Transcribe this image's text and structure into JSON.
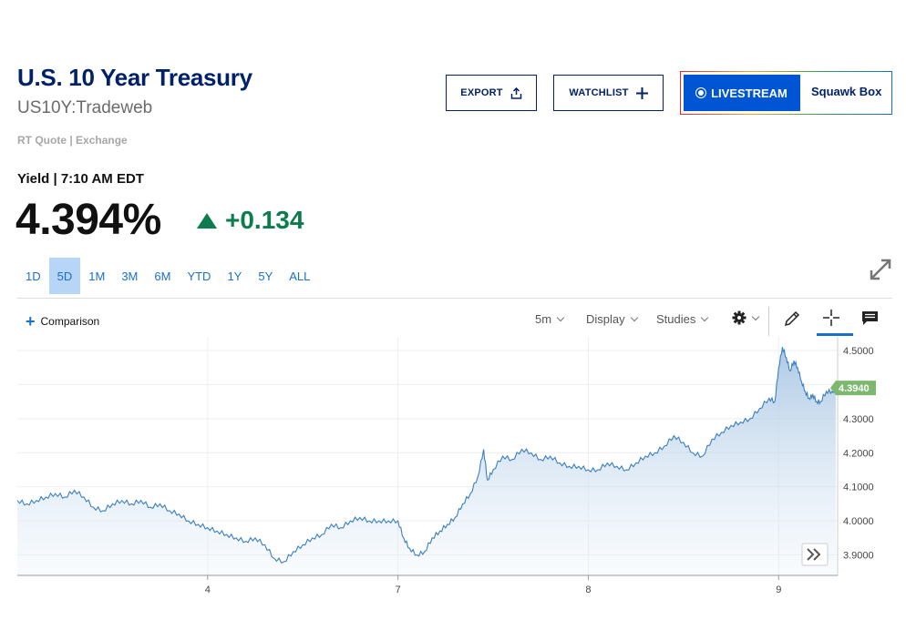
{
  "header": {
    "title": "U.S. 10 Year Treasury",
    "symbol": "US10Y:Tradeweb",
    "quote_source": "RT Quote | Exchange",
    "yield_label": "Yield | 7:10 AM EDT",
    "price": "4.394%",
    "change": "+0.134"
  },
  "actions": {
    "export": "EXPORT",
    "watchlist": "WATCHLIST",
    "livestream": "LIVESTREAM",
    "squawk": "Squawk Box"
  },
  "ranges": [
    "1D",
    "5D",
    "1M",
    "3M",
    "6M",
    "YTD",
    "1Y",
    "5Y",
    "ALL"
  ],
  "active_range": "5D",
  "toolbar": {
    "comparison": "Comparison",
    "interval": "5m",
    "display": "Display",
    "studies": "Studies"
  },
  "colors": {
    "accent": "#1a6fc9",
    "positive": "#0b7c4e",
    "brand": "#012169",
    "last_badge": "#7cb86e"
  },
  "chart_data": {
    "type": "area",
    "last_value_label": "4.3940",
    "y_ticks": [
      "4.5000",
      "4.4000",
      "4.3000",
      "4.2000",
      "4.1000",
      "4.0000",
      "3.9000"
    ],
    "ylim": [
      3.84,
      4.54
    ],
    "x_ticks": [
      {
        "label": "4",
        "x": 1.0
      },
      {
        "label": "7",
        "x": 2.0
      },
      {
        "label": "8",
        "x": 3.0
      },
      {
        "label": "9",
        "x": 4.0
      }
    ],
    "xlim": [
      0.0,
      4.31
    ],
    "series": [
      {
        "x": [
          0.0,
          0.05,
          0.1,
          0.15,
          0.2,
          0.25,
          0.3,
          0.35,
          0.4,
          0.45,
          0.5,
          0.55,
          0.6,
          0.65,
          0.7,
          0.75,
          0.8,
          0.85,
          0.9,
          0.95,
          1.0,
          1.05,
          1.1,
          1.15,
          1.2,
          1.25,
          1.3,
          1.35,
          1.4,
          1.45,
          1.5,
          1.55,
          1.6,
          1.65,
          1.7,
          1.75,
          1.8,
          1.85,
          1.9,
          1.95,
          2.0,
          2.03,
          2.06,
          2.1,
          2.14,
          2.18,
          2.22,
          2.26,
          2.3,
          2.34,
          2.38,
          2.42,
          2.45,
          2.47,
          2.5,
          2.55,
          2.6,
          2.65,
          2.7,
          2.75,
          2.8,
          2.85,
          2.9,
          2.95,
          3.0,
          3.05,
          3.1,
          3.15,
          3.2,
          3.25,
          3.3,
          3.35,
          3.4,
          3.45,
          3.5,
          3.55,
          3.6,
          3.65,
          3.7,
          3.75,
          3.8,
          3.85,
          3.9,
          3.95,
          3.98,
          4.0,
          4.02,
          4.04,
          4.06,
          4.08,
          4.1,
          4.12,
          4.14,
          4.16,
          4.18,
          4.2,
          4.22,
          4.25,
          4.28,
          4.3
        ],
        "y": [
          4.06,
          4.05,
          4.06,
          4.07,
          4.08,
          4.07,
          4.09,
          4.07,
          4.04,
          4.03,
          4.05,
          4.06,
          4.05,
          4.06,
          4.04,
          4.05,
          4.03,
          4.02,
          4.0,
          3.99,
          3.98,
          3.97,
          3.96,
          3.95,
          3.94,
          3.95,
          3.93,
          3.89,
          3.88,
          3.91,
          3.93,
          3.95,
          3.96,
          3.99,
          3.98,
          4.0,
          4.01,
          4.0,
          4.0,
          4.0,
          4.0,
          3.95,
          3.92,
          3.9,
          3.91,
          3.95,
          3.97,
          3.99,
          4.01,
          4.05,
          4.08,
          4.13,
          4.21,
          4.12,
          4.15,
          4.19,
          4.18,
          4.21,
          4.2,
          4.18,
          4.19,
          4.17,
          4.16,
          4.16,
          4.15,
          4.15,
          4.17,
          4.16,
          4.15,
          4.17,
          4.19,
          4.2,
          4.22,
          4.25,
          4.23,
          4.2,
          4.19,
          4.24,
          4.26,
          4.28,
          4.29,
          4.3,
          4.33,
          4.36,
          4.35,
          4.45,
          4.51,
          4.48,
          4.44,
          4.47,
          4.45,
          4.41,
          4.38,
          4.36,
          4.37,
          4.35,
          4.35,
          4.38,
          4.38,
          4.39
        ]
      }
    ]
  }
}
